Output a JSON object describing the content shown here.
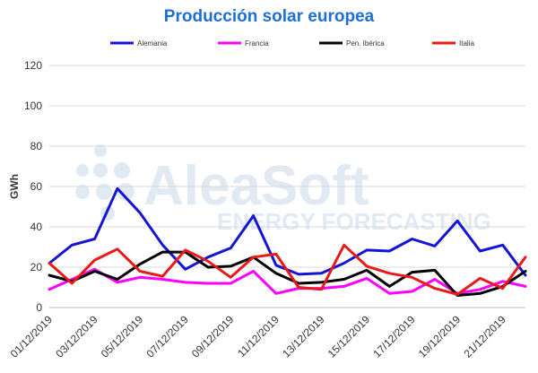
{
  "chart_data": {
    "type": "line",
    "title": "Producción solar europea",
    "xlabel": "",
    "ylabel": "GWh",
    "ylim": [
      0,
      120
    ],
    "yticks": [
      0,
      20,
      40,
      60,
      80,
      100,
      120
    ],
    "grid": true,
    "legend_position": "top",
    "x": [
      "01/12/2019",
      "02/12/2019",
      "03/12/2019",
      "04/12/2019",
      "05/12/2019",
      "06/12/2019",
      "07/12/2019",
      "08/12/2019",
      "09/12/2019",
      "10/12/2019",
      "11/12/2019",
      "12/12/2019",
      "13/12/2019",
      "14/12/2019",
      "15/12/2019",
      "16/12/2019",
      "17/12/2019",
      "18/12/2019",
      "19/12/2019",
      "20/12/2019",
      "21/12/2019",
      "22/12/2019"
    ],
    "x_tick_labels": [
      "01/12/2019",
      "03/12/2019",
      "05/12/2019",
      "07/12/2019",
      "09/12/2019",
      "11/12/2019",
      "13/12/2019",
      "15/12/2019",
      "17/12/2019",
      "19/12/2019",
      "21/12/2019"
    ],
    "series": [
      {
        "name": "Alemania",
        "color": "#1515d6",
        "values": [
          22,
          31,
          34,
          59,
          47,
          31,
          19,
          25,
          29.5,
          45.5,
          21,
          16.5,
          17,
          22,
          28.5,
          28,
          34,
          30.5,
          43,
          28,
          31,
          16
        ]
      },
      {
        "name": "Francia",
        "color": "#ff00ff",
        "values": [
          9,
          14,
          19,
          12.5,
          15,
          14,
          12.5,
          12,
          12,
          18,
          7,
          9.5,
          9.5,
          10.5,
          14.5,
          7,
          8,
          14,
          7,
          9,
          13,
          10.5
        ]
      },
      {
        "name": "Pen. Ibérica",
        "color": "#000000",
        "values": [
          16,
          13,
          18,
          14,
          21.5,
          27.5,
          27.5,
          20,
          20.5,
          25,
          17,
          12,
          12.5,
          14,
          18.5,
          10.5,
          17.5,
          18.5,
          6,
          7,
          10.5,
          18
        ]
      },
      {
        "name": "Italia",
        "color": "#e81a1a",
        "values": [
          22,
          12,
          23.5,
          29,
          18,
          15.5,
          28.5,
          23,
          15,
          25,
          26.5,
          10,
          9,
          31,
          20.5,
          17,
          15,
          9.5,
          6.5,
          14.5,
          9.5,
          25
        ]
      }
    ]
  },
  "watermark": {
    "brand": "AleaSoft",
    "tagline": "ENERGY FORECASTING"
  }
}
